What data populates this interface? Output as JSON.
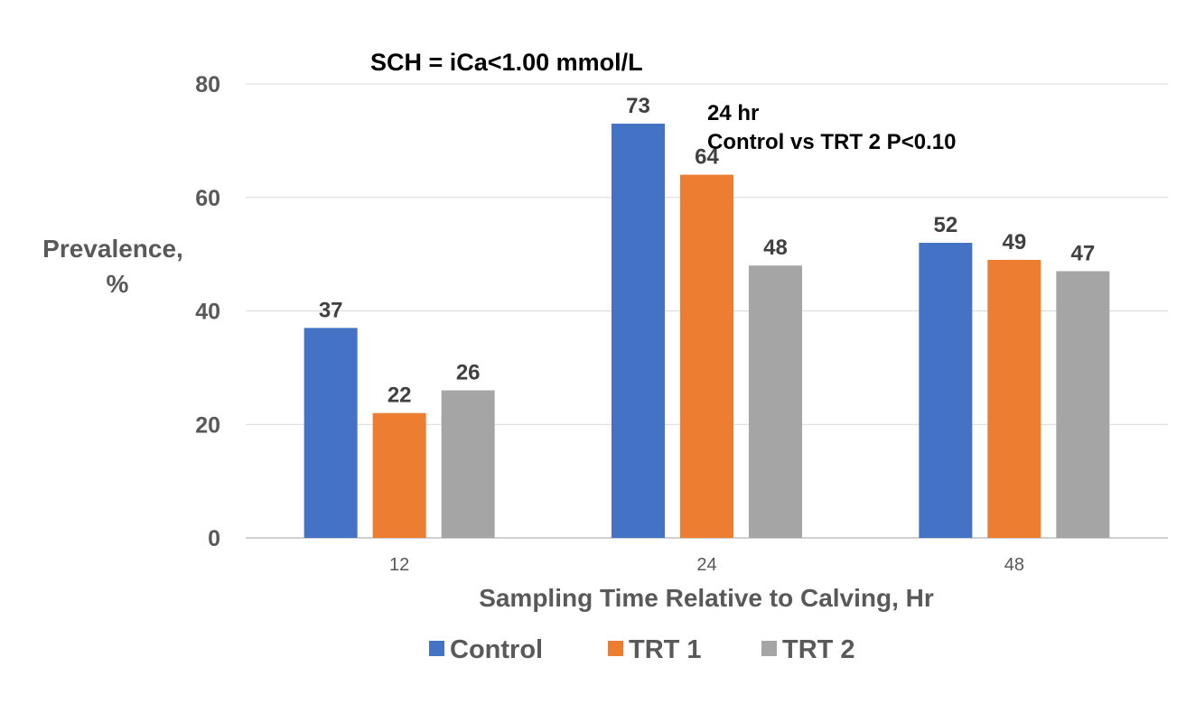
{
  "chart_data": {
    "type": "bar",
    "title": "SCH = iCa<1.00 mmol/L",
    "categories": [
      "12",
      "24",
      "48"
    ],
    "series": [
      {
        "name": "Control",
        "values": [
          37,
          73,
          52
        ],
        "color": "#4472C4"
      },
      {
        "name": "TRT 1",
        "values": [
          22,
          64,
          49
        ],
        "color": "#ED7D31"
      },
      {
        "name": "TRT 2",
        "values": [
          26,
          48,
          47
        ],
        "color": "#A5A5A5"
      }
    ],
    "xlabel": "Sampling Time Relative to Calving, Hr",
    "ylabel_lines": [
      "Prevalence,",
      "%"
    ],
    "ylim": [
      0,
      80
    ],
    "yticks": [
      0,
      20,
      40,
      60,
      80
    ],
    "grid": true,
    "legend_position": "bottom",
    "annotation_lines": [
      "24 hr",
      "Control vs TRT 2 P<0.10"
    ]
  }
}
